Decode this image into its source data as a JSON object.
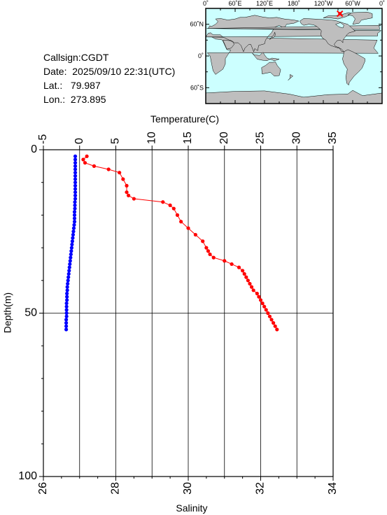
{
  "station": {
    "callsign_label": "Callsign:",
    "callsign": "CGDT",
    "date_label": "Date:",
    "date": "2025/09/10 22:31(UTC)",
    "lat_label": "Lat.:",
    "lat": "79.987",
    "lon_label": "Lon.:",
    "lon": "273.895"
  },
  "map": {
    "lon_ticks": [
      "0˚",
      "60˚E",
      "120˚E",
      "180˚",
      "120˚W",
      "60˚W",
      "0˚"
    ],
    "lat_ticks": [
      "60˚N",
      "0˚",
      "60˚S"
    ],
    "ocean_color": "#ccffff",
    "land_color": "#bebebe",
    "marker_color": "#ff0000",
    "marker": {
      "lat": 79.987,
      "lon": 273.895
    }
  },
  "chart_data": {
    "type": "line",
    "top_axis_label": "Temperature(C)",
    "bottom_axis_label": "Salinity",
    "y_axis_label": "Depth(m)",
    "temperature_range": [
      -5,
      35
    ],
    "temperature_ticks": [
      "-5",
      "0",
      "5",
      "10",
      "15",
      "20",
      "25",
      "30",
      "35"
    ],
    "salinity_range": [
      26,
      34
    ],
    "salinity_ticks": [
      "26",
      "28",
      "30",
      "32",
      "34"
    ],
    "depth_range": [
      0,
      100
    ],
    "depth_ticks": [
      "0",
      "50",
      "100"
    ],
    "series": [
      {
        "variable": "temperature",
        "color": "#0000ff",
        "points": [
          [
            -0.6,
            2
          ],
          [
            -0.6,
            3
          ],
          [
            -0.6,
            4
          ],
          [
            -0.6,
            5
          ],
          [
            -0.6,
            6
          ],
          [
            -0.6,
            7
          ],
          [
            -0.6,
            8
          ],
          [
            -0.6,
            9
          ],
          [
            -0.6,
            10
          ],
          [
            -0.6,
            11
          ],
          [
            -0.6,
            12
          ],
          [
            -0.6,
            13
          ],
          [
            -0.6,
            14
          ],
          [
            -0.6,
            15
          ],
          [
            -0.65,
            16
          ],
          [
            -0.65,
            17
          ],
          [
            -0.65,
            18
          ],
          [
            -0.7,
            19
          ],
          [
            -0.7,
            20
          ],
          [
            -0.7,
            21
          ],
          [
            -0.7,
            22
          ],
          [
            -0.75,
            23
          ],
          [
            -0.8,
            24
          ],
          [
            -0.85,
            25
          ],
          [
            -0.9,
            26
          ],
          [
            -0.95,
            27
          ],
          [
            -1.0,
            28
          ],
          [
            -1.05,
            29
          ],
          [
            -1.1,
            30
          ],
          [
            -1.15,
            31
          ],
          [
            -1.2,
            32
          ],
          [
            -1.25,
            33
          ],
          [
            -1.3,
            34
          ],
          [
            -1.35,
            35
          ],
          [
            -1.4,
            36
          ],
          [
            -1.45,
            37
          ],
          [
            -1.5,
            38
          ],
          [
            -1.55,
            39
          ],
          [
            -1.6,
            40
          ],
          [
            -1.65,
            41
          ],
          [
            -1.7,
            42
          ],
          [
            -1.7,
            43
          ],
          [
            -1.75,
            44
          ],
          [
            -1.75,
            45
          ],
          [
            -1.75,
            46
          ],
          [
            -1.8,
            47
          ],
          [
            -1.8,
            48
          ],
          [
            -1.8,
            49
          ],
          [
            -1.8,
            50
          ],
          [
            -1.8,
            51
          ],
          [
            -1.85,
            52
          ],
          [
            -1.85,
            53
          ],
          [
            -1.85,
            54
          ],
          [
            -1.85,
            55
          ]
        ]
      },
      {
        "variable": "salinity",
        "color": "#ff0000",
        "points": [
          [
            27.2,
            2
          ],
          [
            27.1,
            3
          ],
          [
            27.15,
            4
          ],
          [
            27.4,
            5
          ],
          [
            27.8,
            6
          ],
          [
            28.1,
            7
          ],
          [
            28.2,
            9
          ],
          [
            28.3,
            11
          ],
          [
            28.3,
            13
          ],
          [
            28.35,
            14
          ],
          [
            28.5,
            15
          ],
          [
            29.3,
            16
          ],
          [
            29.5,
            17
          ],
          [
            29.6,
            18
          ],
          [
            29.7,
            20
          ],
          [
            29.8,
            22
          ],
          [
            30.0,
            24
          ],
          [
            30.2,
            26
          ],
          [
            30.4,
            28
          ],
          [
            30.5,
            30
          ],
          [
            30.55,
            31
          ],
          [
            30.6,
            32
          ],
          [
            30.7,
            33
          ],
          [
            31.0,
            34
          ],
          [
            31.2,
            35
          ],
          [
            31.4,
            36
          ],
          [
            31.5,
            37
          ],
          [
            31.55,
            38
          ],
          [
            31.6,
            39
          ],
          [
            31.65,
            40
          ],
          [
            31.7,
            41
          ],
          [
            31.75,
            42
          ],
          [
            31.8,
            43
          ],
          [
            31.9,
            44
          ],
          [
            31.95,
            45
          ],
          [
            32.0,
            46
          ],
          [
            32.05,
            47
          ],
          [
            32.1,
            48
          ],
          [
            32.15,
            49
          ],
          [
            32.2,
            50
          ],
          [
            32.25,
            51
          ],
          [
            32.3,
            52
          ],
          [
            32.35,
            53
          ],
          [
            32.4,
            54
          ],
          [
            32.45,
            55
          ]
        ]
      }
    ]
  }
}
